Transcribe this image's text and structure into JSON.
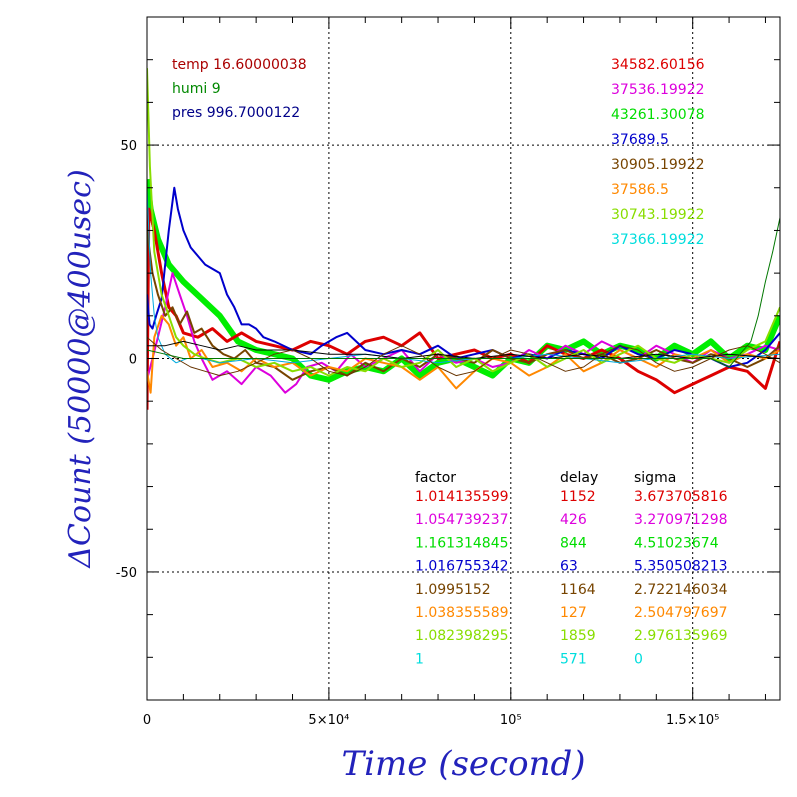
{
  "chart_data": {
    "type": "line",
    "xlabel": "Time (second)",
    "ylabel": "ΔCount (50000@400usec)",
    "xlim": [
      0,
      174000
    ],
    "ylim": [
      -80,
      80
    ],
    "x_ticks": [
      {
        "value": 0,
        "label": "0"
      },
      {
        "value": 50000,
        "label": "5×10⁴"
      },
      {
        "value": 100000,
        "label": "10⁵"
      },
      {
        "value": 150000,
        "label": "1.5×10⁵"
      }
    ],
    "y_ticks": [
      {
        "value": 50,
        "label": "50"
      },
      {
        "value": 0,
        "label": "0"
      },
      {
        "value": -50,
        "label": "-50"
      }
    ],
    "grid": true,
    "env_labels": [
      {
        "text": "temp 16.60000038",
        "color": "#aa0000"
      },
      {
        "text": "humi 9",
        "color": "#008800"
      },
      {
        "text": "pres 996.7000122",
        "color": "#000088"
      }
    ],
    "means": [
      {
        "text": "34582.60156",
        "color": "#dd0000"
      },
      {
        "text": "37536.19922",
        "color": "#dd00dd"
      },
      {
        "text": "43261.30078",
        "color": "#00dd00"
      },
      {
        "text": "37689.5",
        "color": "#0000cc"
      },
      {
        "text": "30905.19922",
        "color": "#774400"
      },
      {
        "text": "37586.5",
        "color": "#ff8800"
      },
      {
        "text": "30743.19922",
        "color": "#88dd00"
      },
      {
        "text": "37366.19922",
        "color": "#00dddd"
      }
    ],
    "table": {
      "headers": [
        "factor",
        "delay",
        "sigma"
      ],
      "rows": [
        {
          "factor": "1.014135599",
          "delay": "1152",
          "sigma": "3.673705816",
          "color": "#dd0000"
        },
        {
          "factor": "1.054739237",
          "delay": "426",
          "sigma": "3.270971298",
          "color": "#dd00dd"
        },
        {
          "factor": "1.161314845",
          "delay": "844",
          "sigma": "4.51023674",
          "color": "#00dd00"
        },
        {
          "factor": "1.016755342",
          "delay": "63",
          "sigma": "5.350508213",
          "color": "#0000cc"
        },
        {
          "factor": "1.0995152",
          "delay": "1164",
          "sigma": "2.722146034",
          "color": "#774400"
        },
        {
          "factor": "1.038355589",
          "delay": "127",
          "sigma": "2.504797697",
          "color": "#ff8800"
        },
        {
          "factor": "1.082398295",
          "delay": "1859",
          "sigma": "2.976135969",
          "color": "#88dd00"
        },
        {
          "factor": "1",
          "delay": "571",
          "sigma": "0",
          "color": "#00dddd"
        }
      ]
    },
    "series": [
      {
        "color": "#00ee00",
        "width": 6,
        "x": [
          0,
          1000,
          3000,
          6000,
          10000,
          15000,
          20000,
          25000,
          30000,
          35000,
          40000,
          45000,
          50000,
          55000,
          60000,
          65000,
          70000,
          75000,
          80000,
          85000,
          90000,
          95000,
          100000,
          105000,
          110000,
          115000,
          120000,
          125000,
          130000,
          135000,
          140000,
          145000,
          150000,
          155000,
          160000,
          165000,
          170000,
          174000
        ],
        "y": [
          42,
          35,
          28,
          22,
          18,
          14,
          10,
          4,
          2,
          1,
          0,
          -4,
          -5,
          -3,
          -2,
          -3,
          0,
          -4,
          -1,
          0,
          -2,
          -4,
          0,
          -1,
          3,
          2,
          4,
          1,
          3,
          2,
          0,
          3,
          1,
          4,
          0,
          3,
          2,
          10
        ]
      },
      {
        "color": "#dd0000",
        "width": 3,
        "x": [
          0,
          500,
          2000,
          4000,
          6000,
          8000,
          10000,
          14000,
          18000,
          22000,
          26000,
          30000,
          35000,
          40000,
          45000,
          50000,
          55000,
          60000,
          65000,
          70000,
          75000,
          80000,
          85000,
          90000,
          95000,
          100000,
          105000,
          110000,
          115000,
          120000,
          125000,
          130000,
          135000,
          140000,
          145000,
          150000,
          155000,
          160000,
          165000,
          170000,
          174000
        ],
        "y": [
          -12,
          35,
          30,
          20,
          12,
          10,
          6,
          5,
          7,
          4,
          6,
          4,
          3,
          2,
          4,
          3,
          1,
          4,
          5,
          3,
          6,
          0,
          1,
          2,
          0,
          1,
          -1,
          3,
          1,
          0,
          2,
          0,
          -3,
          -5,
          -8,
          -6,
          -4,
          -2,
          -3,
          -7,
          4
        ]
      },
      {
        "color": "#dd00dd",
        "width": 2,
        "x": [
          0,
          1500,
          3000,
          5000,
          7000,
          9000,
          11000,
          13000,
          15000,
          18000,
          22000,
          26000,
          30000,
          34000,
          38000,
          41000,
          44000,
          48000,
          52000,
          56000,
          60000,
          65000,
          70000,
          75000,
          80000,
          85000,
          90000,
          95000,
          100000,
          105000,
          110000,
          115000,
          120000,
          125000,
          130000,
          135000,
          140000,
          145000,
          150000,
          155000,
          160000,
          165000,
          170000,
          174000
        ],
        "y": [
          -5,
          0,
          5,
          12,
          20,
          15,
          10,
          4,
          0,
          -5,
          -3,
          -6,
          -2,
          -4,
          -8,
          -6,
          -2,
          -1,
          -3,
          1,
          -2,
          0,
          2,
          -3,
          1,
          -1,
          0,
          -2,
          -1,
          2,
          0,
          3,
          1,
          4,
          2,
          0,
          3,
          1,
          -1,
          2,
          0,
          1,
          3,
          2
        ]
      },
      {
        "color": "#0000cc",
        "width": 2,
        "x": [
          0,
          700,
          1500,
          2500,
          4000,
          6000,
          7500,
          8500,
          10000,
          12000,
          14000,
          16000,
          18000,
          20000,
          22000,
          24000,
          26000,
          28000,
          30000,
          32000,
          35000,
          40000,
          45000,
          48000,
          52000,
          55000,
          60000,
          65000,
          70000,
          75000,
          80000,
          85000,
          90000,
          95000,
          100000,
          105000,
          110000,
          115000,
          120000,
          125000,
          130000,
          135000,
          140000,
          145000,
          150000,
          155000,
          160000,
          165000,
          170000,
          174000
        ],
        "y": [
          15,
          8,
          7,
          10,
          14,
          30,
          40,
          35,
          30,
          26,
          24,
          22,
          21,
          20,
          15,
          12,
          8,
          8,
          7,
          5,
          4,
          2,
          1,
          3,
          5,
          6,
          2,
          1,
          2,
          1,
          3,
          0,
          1,
          2,
          0,
          1,
          0,
          2,
          1,
          0,
          3,
          1,
          0,
          2,
          1,
          0,
          -2,
          -1,
          2,
          6
        ]
      },
      {
        "color": "#774400",
        "width": 2,
        "x": [
          0,
          1500,
          3000,
          5000,
          7000,
          9000,
          11000,
          13000,
          15000,
          18000,
          21000,
          24000,
          27000,
          30000,
          35000,
          40000,
          45000,
          50000,
          55000,
          60000,
          65000,
          70000,
          75000,
          80000,
          85000,
          90000,
          95000,
          100000,
          105000,
          110000,
          115000,
          120000,
          125000,
          130000,
          135000,
          140000,
          145000,
          150000,
          155000,
          160000,
          165000,
          170000,
          174000
        ],
        "y": [
          30,
          20,
          15,
          10,
          12,
          8,
          11,
          6,
          7,
          3,
          1,
          0,
          2,
          -1,
          -2,
          -5,
          -3,
          -2,
          -4,
          -1,
          -3,
          0,
          -2,
          1,
          0,
          -1,
          2,
          0,
          -1,
          1,
          2,
          0,
          1,
          -1,
          0,
          2,
          0,
          -1,
          1,
          0,
          -2,
          0,
          3
        ]
      },
      {
        "color": "#ff8800",
        "width": 2,
        "x": [
          0,
          1000,
          2000,
          4000,
          6000,
          8000,
          10000,
          12000,
          15000,
          18000,
          22000,
          26000,
          30000,
          35000,
          40000,
          45000,
          50000,
          55000,
          60000,
          65000,
          70000,
          75000,
          80000,
          85000,
          90000,
          95000,
          100000,
          105000,
          110000,
          115000,
          120000,
          125000,
          130000,
          135000,
          140000,
          145000,
          150000,
          155000,
          160000,
          165000,
          170000,
          174000
        ],
        "y": [
          -3,
          -8,
          5,
          10,
          8,
          3,
          5,
          0,
          2,
          -2,
          -1,
          -3,
          0,
          -2,
          -1,
          -4,
          -2,
          -3,
          0,
          -1,
          -2,
          -5,
          -2,
          -7,
          -3,
          0,
          -1,
          -4,
          -2,
          1,
          -3,
          -1,
          2,
          0,
          -2,
          1,
          0,
          2,
          -1,
          1,
          0,
          2
        ]
      },
      {
        "color": "#88dd00",
        "width": 2,
        "x": [
          0,
          800,
          2000,
          4000,
          6000,
          8000,
          10000,
          13000,
          16000,
          20000,
          25000,
          30000,
          35000,
          40000,
          45000,
          50000,
          55000,
          60000,
          65000,
          70000,
          75000,
          80000,
          85000,
          90000,
          95000,
          100000,
          105000,
          110000,
          115000,
          120000,
          125000,
          130000,
          135000,
          140000,
          145000,
          150000,
          155000,
          160000,
          165000,
          170000,
          174000
        ],
        "y": [
          68,
          45,
          25,
          15,
          10,
          5,
          3,
          1,
          0,
          -1,
          0,
          -2,
          -1,
          -3,
          -2,
          -4,
          -2,
          -3,
          0,
          -2,
          -1,
          2,
          -2,
          0,
          -3,
          -1,
          1,
          -2,
          0,
          2,
          -1,
          1,
          3,
          0,
          -1,
          1,
          0,
          -1,
          2,
          4,
          12
        ]
      },
      {
        "color": "#00aadd",
        "width": 1,
        "x": [
          0,
          1000,
          2000,
          3000,
          5000,
          8000,
          11000,
          15000,
          20000,
          30000,
          40000,
          50000,
          60000,
          70000,
          80000,
          90000,
          100000,
          110000,
          120000,
          130000,
          140000,
          150000,
          160000,
          174000
        ],
        "y": [
          40,
          20,
          10,
          5,
          1,
          -1,
          0,
          0,
          -1,
          0,
          -1,
          0,
          1,
          0,
          -1,
          0,
          0,
          1,
          0,
          -1,
          0,
          1,
          0,
          1
        ]
      },
      {
        "color": "#000000",
        "width": 1,
        "x": [
          0,
          5000,
          10000,
          15000,
          20000,
          25000,
          30000,
          40000,
          50000,
          60000,
          70000,
          80000,
          90000,
          100000,
          110000,
          120000,
          130000,
          140000,
          150000,
          160000,
          174000
        ],
        "y": [
          3,
          3,
          4,
          3,
          2,
          3,
          2,
          2,
          1,
          1,
          0,
          1,
          0,
          1,
          0,
          1,
          0,
          1,
          0,
          1,
          0
        ]
      },
      {
        "color": "#663300",
        "width": 1,
        "x": [
          0,
          4000,
          8000,
          12000,
          16000,
          20000,
          25000,
          30000,
          35000,
          40000,
          45000,
          50000,
          55000,
          60000,
          65000,
          70000,
          75000,
          80000,
          85000,
          90000,
          95000,
          100000,
          105000,
          110000,
          115000,
          120000,
          125000,
          130000,
          135000,
          140000,
          145000,
          150000,
          155000,
          160000,
          165000,
          170000,
          174000
        ],
        "y": [
          5,
          2,
          0,
          -2,
          -3,
          -4,
          -3,
          -1,
          1,
          2,
          0,
          -3,
          -4,
          -2,
          1,
          3,
          1,
          -2,
          -4,
          -3,
          0,
          2,
          1,
          -1,
          -3,
          -2,
          1,
          3,
          2,
          -1,
          -3,
          -2,
          0,
          2,
          3,
          1,
          -1
        ]
      },
      {
        "color": "#007700",
        "width": 1,
        "x": [
          0,
          5000,
          10000,
          20000,
          40000,
          60000,
          80000,
          100000,
          120000,
          140000,
          155000,
          160000,
          163000,
          166000,
          168000,
          170000,
          172000,
          174000
        ],
        "y": [
          2,
          1,
          0,
          0,
          0,
          0,
          0,
          0,
          0,
          0,
          0,
          -2,
          1,
          4,
          10,
          18,
          25,
          33
        ]
      }
    ]
  }
}
